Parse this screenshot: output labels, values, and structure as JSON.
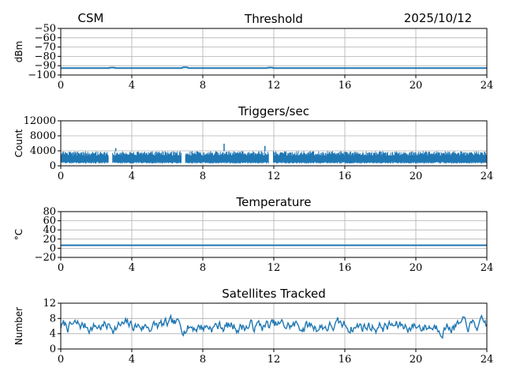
{
  "header": {
    "left": "CSM",
    "right": "2025/10/12"
  },
  "colors": {
    "series": "#1f77b4",
    "grid": "#b0b0b0",
    "axis": "#000000"
  },
  "chart_data": [
    {
      "type": "line",
      "title": "Threshold",
      "ylabel": "dBm",
      "xlim": [
        0,
        24
      ],
      "ylim": [
        -100,
        -50
      ],
      "xticks": [
        0,
        4,
        8,
        12,
        16,
        20,
        24
      ],
      "yticks": [
        -100,
        -90,
        -80,
        -70,
        -60,
        -50
      ],
      "ytick_labels": [
        "−100",
        "−90",
        "−80",
        "−70",
        "−60",
        "−50"
      ],
      "grid": true,
      "series": [
        {
          "x": [
            0,
            2.7,
            2.8,
            3.0,
            3.1,
            6.8,
            6.9,
            7.1,
            7.2,
            11.6,
            11.7,
            11.9,
            12.0,
            24
          ],
          "y": [
            -92.5,
            -92.5,
            -92.0,
            -92.0,
            -92.5,
            -92.5,
            -91.8,
            -91.8,
            -92.5,
            -92.5,
            -92.0,
            -92.0,
            -92.5,
            -92.5
          ]
        }
      ]
    },
    {
      "type": "line",
      "title": "Triggers/sec",
      "ylabel": "Count",
      "xlim": [
        0,
        24
      ],
      "ylim": [
        0,
        12000
      ],
      "xticks": [
        0,
        4,
        8,
        12,
        16,
        20,
        24
      ],
      "yticks": [
        0,
        4000,
        8000,
        12000
      ],
      "ytick_labels": [
        "0",
        "4000",
        "8000",
        "12000"
      ],
      "grid": true,
      "band_series": {
        "low": 600,
        "high": 3900,
        "gaps": [
          [
            2.7,
            2.9
          ],
          [
            6.8,
            7.0
          ],
          [
            11.7,
            11.95
          ]
        ],
        "spikes": [
          {
            "x": 9.2,
            "y": 5900
          },
          {
            "x": 11.5,
            "y": 5300
          },
          {
            "x": 3.1,
            "y": 4700
          }
        ]
      }
    },
    {
      "type": "line",
      "title": "Temperature",
      "ylabel": "°C",
      "xlim": [
        0,
        24
      ],
      "ylim": [
        -20,
        80
      ],
      "xticks": [
        0,
        4,
        8,
        12,
        16,
        20,
        24
      ],
      "yticks": [
        -20,
        0,
        20,
        40,
        60,
        80
      ],
      "ytick_labels": [
        "−20",
        "0",
        "20",
        "40",
        "60",
        "80"
      ],
      "grid": true,
      "series": [
        {
          "x": [
            0,
            24
          ],
          "y": [
            6.5,
            6.5
          ]
        }
      ]
    },
    {
      "type": "line",
      "title": "Satellites Tracked",
      "ylabel": "Number",
      "xlim": [
        0,
        24
      ],
      "ylim": [
        0,
        12
      ],
      "xticks": [
        0,
        4,
        8,
        12,
        16,
        20,
        24
      ],
      "yticks": [
        0,
        4,
        8,
        12
      ],
      "ytick_labels": [
        "0",
        "4",
        "8",
        "12"
      ],
      "grid": true,
      "noisy_series": {
        "mean": 6,
        "spread": 2.2,
        "min": 2,
        "max": 10,
        "points": 480,
        "seed": 7
      }
    }
  ]
}
